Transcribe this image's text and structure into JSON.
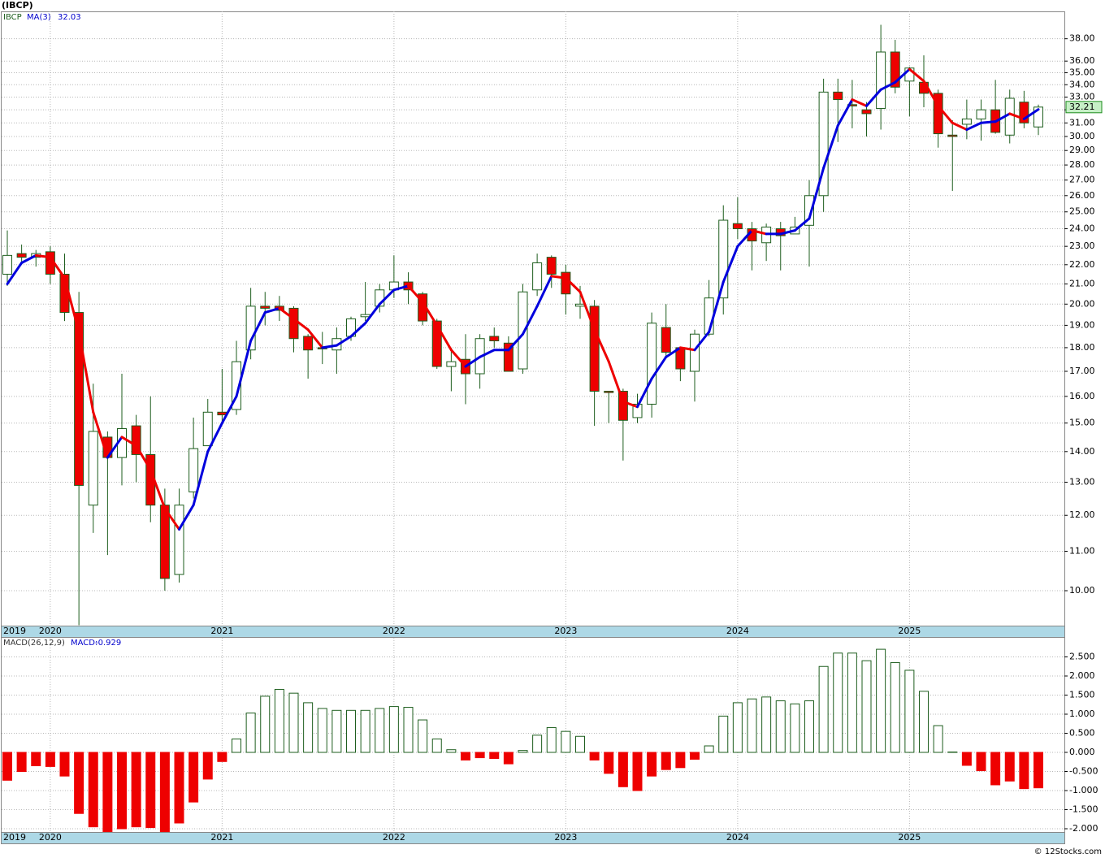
{
  "chart_data": [
    {
      "type": "candlestick",
      "title": "(IBCP)",
      "log_scale": true,
      "grid": true,
      "categories": [
        "2019",
        null,
        null,
        "2020",
        null,
        null,
        null,
        null,
        null,
        null,
        null,
        null,
        null,
        null,
        null,
        "2021",
        null,
        null,
        null,
        null,
        null,
        null,
        null,
        null,
        null,
        null,
        null,
        "2022",
        null,
        null,
        null,
        null,
        null,
        null,
        null,
        null,
        null,
        null,
        null,
        "2023",
        null,
        null,
        null,
        null,
        null,
        null,
        null,
        null,
        null,
        null,
        null,
        "2024",
        null,
        null,
        null,
        null,
        null,
        null,
        null,
        null,
        null,
        null,
        null,
        "2025",
        null,
        null,
        null,
        null,
        null,
        null,
        null,
        null,
        null
      ],
      "series": [
        {
          "name": "IBCP",
          "up_color": "#ffffff",
          "down_color": "#ee0000",
          "edge_color": "#1e5e1e",
          "open": [
            21.5,
            22.6,
            22.4,
            22.7,
            21.5,
            19.6,
            12.3,
            14.5,
            13.8,
            14.9,
            13.9,
            12.3,
            10.4,
            12.7,
            14.2,
            15.4,
            15.5,
            17.9,
            19.9,
            19.9,
            19.8,
            18.5,
            18.0,
            17.9,
            18.5,
            19.4,
            19.9,
            20.7,
            21.1,
            20.5,
            19.2,
            17.2,
            17.5,
            16.9,
            18.5,
            18.2,
            17.1,
            20.7,
            22.4,
            21.6,
            19.9,
            19.9,
            16.2,
            16.2,
            15.2,
            15.7,
            18.9,
            18.0,
            17.0,
            18.6,
            20.3,
            24.3,
            24.0,
            23.2,
            24.0,
            23.7,
            24.2,
            26.0,
            33.4,
            32.4,
            32.0,
            32.1,
            36.8,
            34.3,
            34.2,
            33.3,
            30.1,
            30.9,
            31.3,
            32.0,
            30.1,
            32.6,
            30.7
          ],
          "high": [
            23.9,
            23.1,
            22.8,
            23.0,
            22.6,
            20.6,
            16.5,
            14.7,
            16.9,
            15.3,
            16.0,
            12.8,
            12.8,
            15.2,
            15.9,
            17.1,
            18.3,
            20.8,
            20.6,
            20.4,
            19.9,
            18.6,
            18.7,
            18.9,
            19.4,
            21.1,
            21.0,
            22.5,
            21.6,
            20.6,
            19.3,
            18.0,
            18.6,
            18.6,
            18.9,
            18.5,
            21.0,
            22.6,
            22.5,
            22.0,
            20.9,
            20.2,
            16.2,
            16.3,
            16.1,
            19.6,
            20.0,
            18.0,
            18.8,
            21.2,
            25.4,
            25.9,
            24.4,
            24.3,
            24.4,
            24.7,
            27.0,
            34.5,
            34.5,
            34.4,
            32.6,
            39.3,
            37.9,
            35.5,
            36.5,
            33.6,
            31.2,
            32.8,
            32.8,
            34.4,
            33.6,
            33.5,
            32.4
          ],
          "low": [
            20.9,
            22.0,
            21.9,
            21.0,
            19.2,
            9.2,
            11.5,
            10.9,
            12.9,
            13.0,
            11.8,
            10.0,
            10.2,
            12.5,
            14.4,
            15.0,
            15.3,
            17.5,
            19.0,
            19.2,
            17.8,
            16.7,
            17.3,
            16.9,
            18.3,
            19.2,
            19.6,
            20.3,
            20.0,
            19.0,
            17.1,
            16.2,
            15.7,
            16.3,
            18.0,
            17.0,
            16.9,
            20.4,
            20.8,
            19.5,
            19.3,
            14.9,
            15.0,
            13.7,
            15.0,
            15.2,
            17.6,
            16.6,
            15.8,
            18.5,
            19.5,
            23.4,
            21.7,
            22.2,
            21.7,
            23.7,
            21.9,
            25.0,
            29.6,
            30.6,
            30.0,
            30.5,
            33.3,
            31.5,
            32.2,
            29.2,
            26.3,
            29.8,
            29.7,
            30.2,
            29.5,
            30.6,
            30.1
          ],
          "close": [
            22.5,
            22.4,
            22.6,
            21.5,
            19.6,
            12.9,
            14.7,
            13.8,
            14.8,
            13.9,
            12.3,
            10.3,
            12.3,
            14.1,
            15.4,
            15.3,
            17.4,
            19.9,
            19.8,
            19.7,
            18.4,
            17.9,
            17.95,
            18.4,
            19.3,
            19.5,
            20.7,
            21.1,
            20.7,
            19.2,
            17.2,
            17.4,
            16.9,
            18.4,
            18.3,
            17.0,
            20.6,
            22.1,
            21.5,
            20.5,
            20.0,
            16.2,
            16.15,
            15.1,
            15.7,
            19.1,
            17.8,
            17.1,
            18.6,
            20.3,
            24.5,
            24.0,
            23.3,
            24.1,
            23.6,
            24.1,
            26.0,
            33.4,
            32.8,
            32.3,
            31.7,
            36.8,
            33.8,
            35.4,
            33.3,
            30.2,
            30.0,
            31.3,
            32.0,
            30.3,
            32.9,
            31.0,
            32.21
          ]
        },
        {
          "name": "MA(3)",
          "up_color": "#0000dd",
          "down_color": "#ee0000",
          "values": [
            21.0,
            22.1,
            22.5,
            22.4,
            21.3,
            18.7,
            15.4,
            13.8,
            14.5,
            14.2,
            13.4,
            12.2,
            11.6,
            12.3,
            14.0,
            15.0,
            16.0,
            18.3,
            19.6,
            19.8,
            19.3,
            18.8,
            18.0,
            18.1,
            18.5,
            19.1,
            20.0,
            20.7,
            20.9,
            20.1,
            19.0,
            17.9,
            17.2,
            17.6,
            17.9,
            17.9,
            18.6,
            19.9,
            21.4,
            21.3,
            20.6,
            18.8,
            17.4,
            15.8,
            15.6,
            16.7,
            17.6,
            18.0,
            17.9,
            18.7,
            21.1,
            23.0,
            23.9,
            23.7,
            23.7,
            23.9,
            24.6,
            27.8,
            30.8,
            32.8,
            32.3,
            33.6,
            34.2,
            35.3,
            34.3,
            32.3,
            31.0,
            30.5,
            31.0,
            31.1,
            31.7,
            31.3,
            32.03
          ]
        }
      ],
      "ylim": [
        9.19,
        40.6
      ],
      "yticks": [
        {
          "value": 10,
          "label": "10.00"
        },
        {
          "value": 11,
          "label": "11.00"
        },
        {
          "value": 12,
          "label": "12.00"
        },
        {
          "value": 13,
          "label": "13.00"
        },
        {
          "value": 14,
          "label": "14.00"
        },
        {
          "value": 15,
          "label": "15.00"
        },
        {
          "value": 16,
          "label": "16.00"
        },
        {
          "value": 17,
          "label": "17.00"
        },
        {
          "value": 18,
          "label": "18.00"
        },
        {
          "value": 19,
          "label": "19.00"
        },
        {
          "value": 20,
          "label": "20.00"
        },
        {
          "value": 21,
          "label": "21.00"
        },
        {
          "value": 22,
          "label": "22.00"
        },
        {
          "value": 23,
          "label": "23.00"
        },
        {
          "value": 24,
          "label": "24.00"
        },
        {
          "value": 25,
          "label": "25.00"
        },
        {
          "value": 26,
          "label": "26.00"
        },
        {
          "value": 27,
          "label": "27.00"
        },
        {
          "value": 28,
          "label": "28.00"
        },
        {
          "value": 29,
          "label": "29.00"
        },
        {
          "value": 30,
          "label": "30.00"
        },
        {
          "value": 31,
          "label": "31.00"
        },
        {
          "value": 32,
          "label": "32.00"
        },
        {
          "value": 33,
          "label": "33.00"
        },
        {
          "value": 34,
          "label": "34.00"
        },
        {
          "value": 35,
          "label": "35.00"
        },
        {
          "value": 36,
          "label": "36.00"
        },
        {
          "value": 38,
          "label": "38.00"
        }
      ]
    },
    {
      "type": "bar",
      "title": "MACD(26,12,9)",
      "grid": true,
      "series": [
        {
          "name": "MACD:",
          "positive_color": "#ffffff",
          "negative_color": "#ee0000",
          "edge_color": "#1e5e1e",
          "values": [
            -0.73,
            -0.5,
            -0.35,
            -0.37,
            -0.62,
            -1.6,
            -1.95,
            -2.1,
            -2.0,
            -1.95,
            -1.97,
            -2.1,
            -1.85,
            -1.3,
            -0.7,
            -0.24,
            0.35,
            1.03,
            1.47,
            1.65,
            1.55,
            1.3,
            1.15,
            1.1,
            1.1,
            1.1,
            1.15,
            1.2,
            1.18,
            0.85,
            0.35,
            0.07,
            -0.2,
            -0.14,
            -0.16,
            -0.3,
            0.05,
            0.45,
            0.65,
            0.55,
            0.42,
            -0.2,
            -0.55,
            -0.9,
            -1.0,
            -0.62,
            -0.45,
            -0.4,
            -0.18,
            0.17,
            0.95,
            1.3,
            1.4,
            1.45,
            1.35,
            1.27,
            1.35,
            2.25,
            2.6,
            2.6,
            2.4,
            2.7,
            2.35,
            2.15,
            1.6,
            0.7,
            0.01,
            -0.34,
            -0.48,
            -0.85,
            -0.75,
            -0.95,
            -0.929
          ]
        }
      ],
      "ylim": [
        -2.085,
        3.0
      ],
      "yticks": [
        {
          "value": 2.5,
          "label": "2.500"
        },
        {
          "value": 2,
          "label": "2.000"
        },
        {
          "value": 1.5,
          "label": "1.500"
        },
        {
          "value": 1,
          "label": "1.000"
        },
        {
          "value": 0.5,
          "label": "0.500"
        },
        {
          "value": 0,
          "label": "0.000"
        },
        {
          "value": -0.5,
          "label": "-0.500"
        },
        {
          "value": -1,
          "label": "-1.000"
        },
        {
          "value": -1.5,
          "label": "-1.500"
        },
        {
          "value": -2,
          "label": "-2.000"
        }
      ],
      "source": "© 12Stocks.com"
    }
  ]
}
